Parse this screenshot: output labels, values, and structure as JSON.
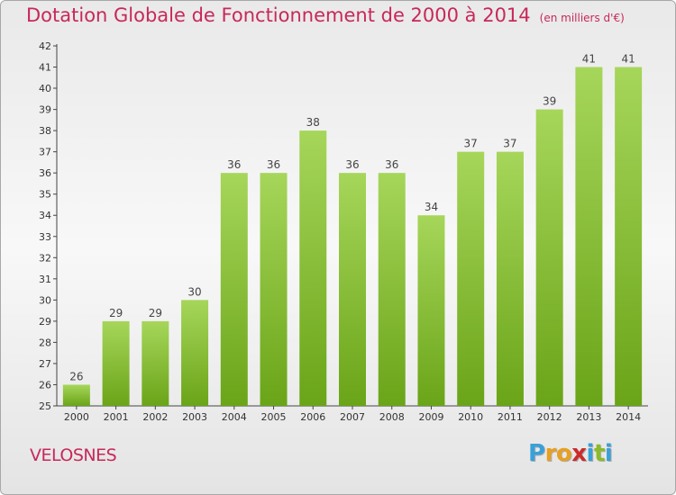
{
  "title": "Dotation Globale de Fonctionnement de 2000 à 2014",
  "unit": "(en milliers d'€)",
  "commune": "VELOSNES",
  "logo": {
    "letters": [
      "P",
      "r",
      "o",
      "x",
      "i",
      "t",
      "i"
    ],
    "colors": [
      "#3aa0d8",
      "#e8a020",
      "#e8a020",
      "#cc2a2a",
      "#3aa0d8",
      "#8abb2a",
      "#3aa0d8"
    ]
  },
  "colors": {
    "title": "#c8285a",
    "bar_light": "#a6d65a",
    "bar_dark": "#6aa418",
    "axis": "#444444"
  },
  "chart_data": {
    "type": "bar",
    "title": "Dotation Globale de Fonctionnement de 2000 à 2014",
    "categories": [
      "2000",
      "2001",
      "2002",
      "2003",
      "2004",
      "2005",
      "2006",
      "2007",
      "2008",
      "2009",
      "2010",
      "2011",
      "2012",
      "2013",
      "2014"
    ],
    "values": [
      26,
      29,
      29,
      30,
      36,
      36,
      38,
      36,
      36,
      34,
      37,
      37,
      39,
      41,
      41
    ],
    "ylim": [
      25,
      42
    ],
    "yticks": [
      25,
      26,
      27,
      28,
      29,
      30,
      31,
      32,
      33,
      34,
      35,
      36,
      37,
      38,
      39,
      40,
      41,
      42
    ],
    "grid": false,
    "legend": "none"
  }
}
